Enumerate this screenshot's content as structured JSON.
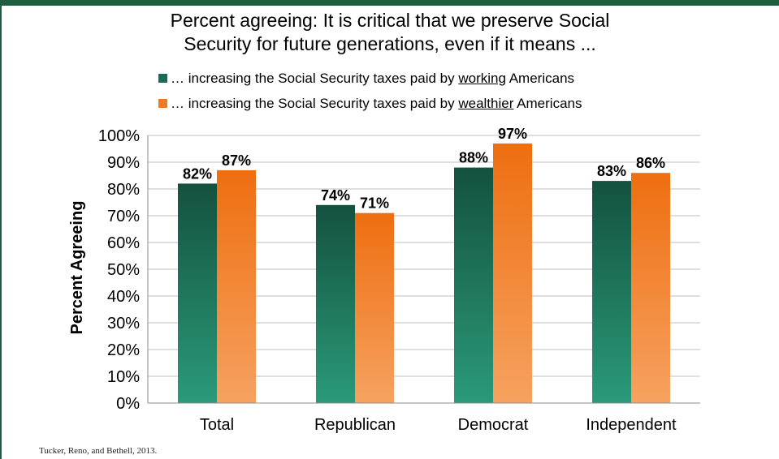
{
  "colors": {
    "accent_bar": "#1e5e3e",
    "series_working": "#1a6b55",
    "series_wealthier": "#f07a22"
  },
  "title_line1": "Percent agreeing: It is critical that we preserve Social",
  "title_line2": "Security for future generations, even if it means ...",
  "legend": {
    "working": {
      "prefix": "… increasing the Social Security taxes paid by ",
      "emph": "working",
      "suffix": " Americans"
    },
    "wealthier": {
      "prefix": "… increasing the Social Security taxes paid by ",
      "emph": "wealthier",
      "suffix": " Americans"
    }
  },
  "source": "Tucker, Reno, and Bethell, 2013.",
  "chart_data": {
    "type": "bar",
    "categories": [
      "Total",
      "Republican",
      "Democrat",
      "Independent"
    ],
    "series": [
      {
        "name": "… increasing the Social Security taxes paid by working Americans",
        "values": [
          82,
          74,
          88,
          83
        ],
        "labels": [
          "82%",
          "74%",
          "88%",
          "83%"
        ]
      },
      {
        "name": "… increasing the Social Security taxes paid by wealthier Americans",
        "values": [
          87,
          71,
          97,
          86
        ],
        "labels": [
          "87%",
          "71%",
          "97%",
          "86%"
        ]
      }
    ],
    "ylabel": "Percent  Agreeing",
    "ylim": [
      0,
      100
    ],
    "yticks": [
      "0%",
      "10%",
      "20%",
      "30%",
      "40%",
      "50%",
      "60%",
      "70%",
      "80%",
      "90%",
      "100%"
    ],
    "grid": true,
    "legend_position": "top"
  }
}
